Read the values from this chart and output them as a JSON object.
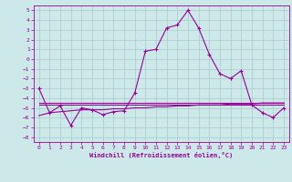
{
  "xlabel": "Windchill (Refroidissement éolien,°C)",
  "background_color": "#cce8e8",
  "grid_color": "#aacccc",
  "line_color": "#990099",
  "ylim": [
    -8.5,
    5.5
  ],
  "xlim": [
    -0.5,
    23.5
  ],
  "yticks": [
    -8,
    -7,
    -6,
    -5,
    -4,
    -3,
    -2,
    -1,
    0,
    1,
    2,
    3,
    4,
    5
  ],
  "xticks": [
    0,
    1,
    2,
    3,
    4,
    5,
    6,
    7,
    8,
    9,
    10,
    11,
    12,
    13,
    14,
    15,
    16,
    17,
    18,
    19,
    20,
    21,
    22,
    23
  ],
  "series": [
    {
      "x": [
        0,
        1,
        2,
        3,
        4,
        5,
        6,
        7,
        8,
        9,
        10,
        11,
        12,
        13,
        14,
        15,
        16,
        17,
        18,
        19,
        20,
        21,
        22,
        23
      ],
      "y": [
        -3.0,
        -5.5,
        -4.8,
        -6.8,
        -5.0,
        -5.2,
        -5.7,
        -5.4,
        -5.3,
        -3.5,
        0.8,
        1.0,
        3.2,
        3.5,
        5.0,
        3.2,
        0.5,
        -1.5,
        -2.0,
        -1.2,
        -4.7,
        -5.5,
        -6.0,
        -5.0
      ],
      "has_marker": true
    },
    {
      "x": [
        0,
        23
      ],
      "y": [
        -4.5,
        -4.5
      ],
      "has_marker": false
    },
    {
      "x": [
        0,
        23
      ],
      "y": [
        -4.7,
        -4.7
      ],
      "has_marker": false
    },
    {
      "x": [
        0,
        1,
        2,
        3,
        4,
        5,
        6,
        7,
        8,
        9,
        10,
        11,
        12,
        13,
        14,
        15,
        16,
        17,
        18,
        19,
        20,
        21,
        22,
        23
      ],
      "y": [
        -5.8,
        -5.5,
        -5.4,
        -5.3,
        -5.2,
        -5.2,
        -5.2,
        -5.1,
        -5.1,
        -5.0,
        -5.0,
        -4.9,
        -4.9,
        -4.8,
        -4.8,
        -4.7,
        -4.7,
        -4.7,
        -4.6,
        -4.6,
        -4.6,
        -4.5,
        -4.5,
        -4.5
      ],
      "has_marker": false
    }
  ]
}
